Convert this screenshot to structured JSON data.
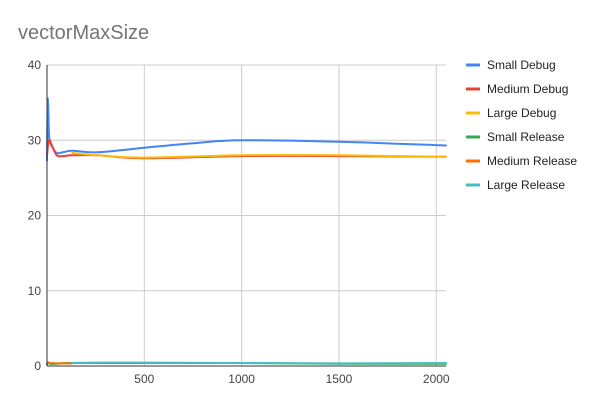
{
  "chart_data": {
    "type": "line",
    "title": "vectorMaxSize",
    "xlabel": "",
    "ylabel": "",
    "xlim": [
      0,
      2050
    ],
    "ylim": [
      0,
      40
    ],
    "x_ticks": [
      500,
      1000,
      1500,
      2000
    ],
    "y_ticks": [
      0,
      10,
      20,
      30,
      40
    ],
    "grid": true,
    "legend_position": "right",
    "series": [
      {
        "name": "Small Debug",
        "color": "#4285f4",
        "points": [
          [
            0,
            27.3
          ],
          [
            3,
            35
          ],
          [
            6,
            34.5
          ],
          [
            10,
            31
          ],
          [
            15,
            29.8
          ],
          [
            25,
            29.2
          ],
          [
            50,
            28.3
          ],
          [
            80,
            28.4
          ],
          [
            130,
            28.6
          ],
          [
            260,
            28.4
          ],
          [
            500,
            29.0
          ],
          [
            750,
            29.6
          ],
          [
            1000,
            30.0
          ],
          [
            1500,
            29.8
          ],
          [
            2050,
            29.3
          ]
        ]
      },
      {
        "name": "Medium Debug",
        "color": "#ea4335",
        "points": [
          [
            0,
            28.0
          ],
          [
            10,
            30
          ],
          [
            25,
            29.3
          ],
          [
            50,
            28.0
          ],
          [
            80,
            27.9
          ],
          [
            130,
            28.0
          ],
          [
            260,
            28.0
          ],
          [
            500,
            27.6
          ],
          [
            1000,
            27.9
          ],
          [
            1500,
            27.9
          ],
          [
            2050,
            27.8
          ]
        ]
      },
      {
        "name": "Large Debug",
        "color": "#fbbc04",
        "points": [
          [
            130,
            28.3
          ],
          [
            260,
            28.0
          ],
          [
            500,
            27.7
          ],
          [
            1000,
            28.0
          ],
          [
            1500,
            28.0
          ],
          [
            2050,
            27.8
          ]
        ]
      },
      {
        "name": "Small Release",
        "color": "#34a853",
        "points": [
          [
            0,
            0.2
          ],
          [
            5,
            0.5
          ],
          [
            15,
            0.3
          ],
          [
            50,
            0.3
          ],
          [
            130,
            0.4
          ],
          [
            500,
            0.4
          ],
          [
            1000,
            0.4
          ],
          [
            1500,
            0.3
          ],
          [
            2050,
            0.3
          ]
        ]
      },
      {
        "name": "Medium Release",
        "color": "#ff6d01",
        "points": [
          [
            0,
            0.3
          ],
          [
            10,
            0.4
          ],
          [
            50,
            0.35
          ],
          [
            130,
            0.35
          ]
        ]
      },
      {
        "name": "Large Release",
        "color": "#46bdc6",
        "points": [
          [
            130,
            0.4
          ],
          [
            260,
            0.45
          ],
          [
            500,
            0.45
          ],
          [
            1000,
            0.4
          ],
          [
            1500,
            0.35
          ],
          [
            2050,
            0.4
          ]
        ]
      }
    ]
  }
}
